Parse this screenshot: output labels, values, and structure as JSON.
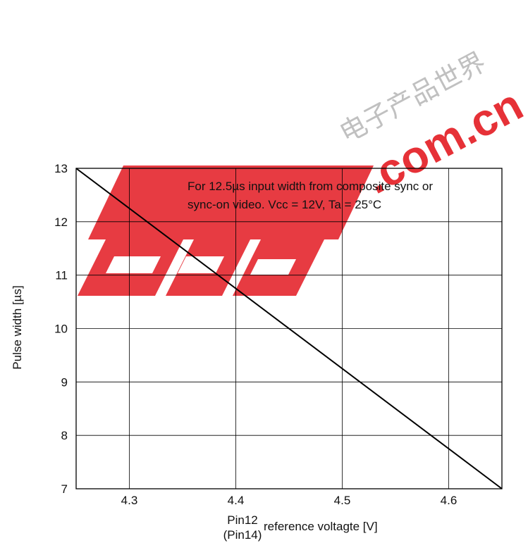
{
  "chart_data": {
    "type": "line",
    "title": "",
    "annotation_line1": "For 12.5µs input width from composite sync or",
    "annotation_line2": "sync-on video. Vcc = 12V, Ta = 25°C",
    "xlabel_part1_line1": "Pin12",
    "xlabel_part1_line2": "(Pin14)",
    "xlabel_part2": "reference voltagte [V]",
    "ylabel": "Pulse width [µs]",
    "xlim": [
      4.25,
      4.65
    ],
    "ylim": [
      7,
      13
    ],
    "x_ticks": [
      4.3,
      4.4,
      4.5,
      4.6
    ],
    "x_tick_labels": [
      "4.3",
      "4.4",
      "4.5",
      "4.6"
    ],
    "y_ticks": [
      7,
      8,
      9,
      10,
      11,
      12,
      13
    ],
    "y_tick_labels": [
      "7",
      "8",
      "9",
      "10",
      "11",
      "12",
      "13"
    ],
    "grid": true,
    "series": [
      {
        "x": [
          4.25,
          4.65
        ],
        "y": [
          13,
          7
        ]
      }
    ]
  },
  "watermark_text": "EEPW .com.cn 电子产品世界",
  "colors": {
    "watermark_red": "#e41f26",
    "line": "#000000",
    "grid": "#000000"
  }
}
